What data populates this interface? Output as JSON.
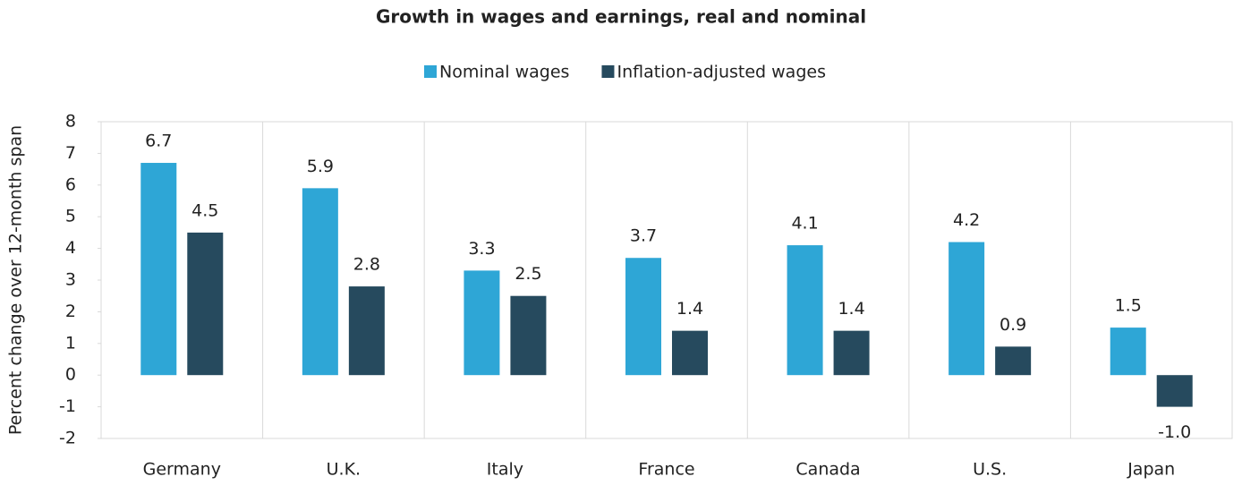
{
  "chart_data": {
    "type": "bar",
    "title": "Growth in wages and earnings, real and nominal",
    "y_label": "Percent change over 12-month span",
    "categories": [
      "Germany",
      "U.K.",
      "Italy",
      "France",
      "Canada",
      "U.S.",
      "Japan"
    ],
    "series": [
      {
        "name": "Nominal wages",
        "color": "#2ea6d6",
        "values": [
          6.7,
          5.9,
          3.3,
          3.7,
          4.1,
          4.2,
          1.5
        ],
        "value_labels": [
          "6.7",
          "5.9",
          "3.3",
          "3.7",
          "4.1",
          "4.2",
          "1.5"
        ]
      },
      {
        "name": "Inflation-adjusted wages",
        "color": "#264a5e",
        "values": [
          4.5,
          2.8,
          2.5,
          1.4,
          1.4,
          0.9,
          -1.0
        ],
        "value_labels": [
          "4.5",
          "2.8",
          "2.5",
          "1.4",
          "1.4",
          "0.9",
          "-1.0"
        ]
      }
    ],
    "ylim": [
      -2,
      8
    ],
    "yticks": [
      -2,
      -1,
      0,
      1,
      2,
      3,
      4,
      5,
      6,
      7,
      8
    ],
    "legend": "top"
  }
}
